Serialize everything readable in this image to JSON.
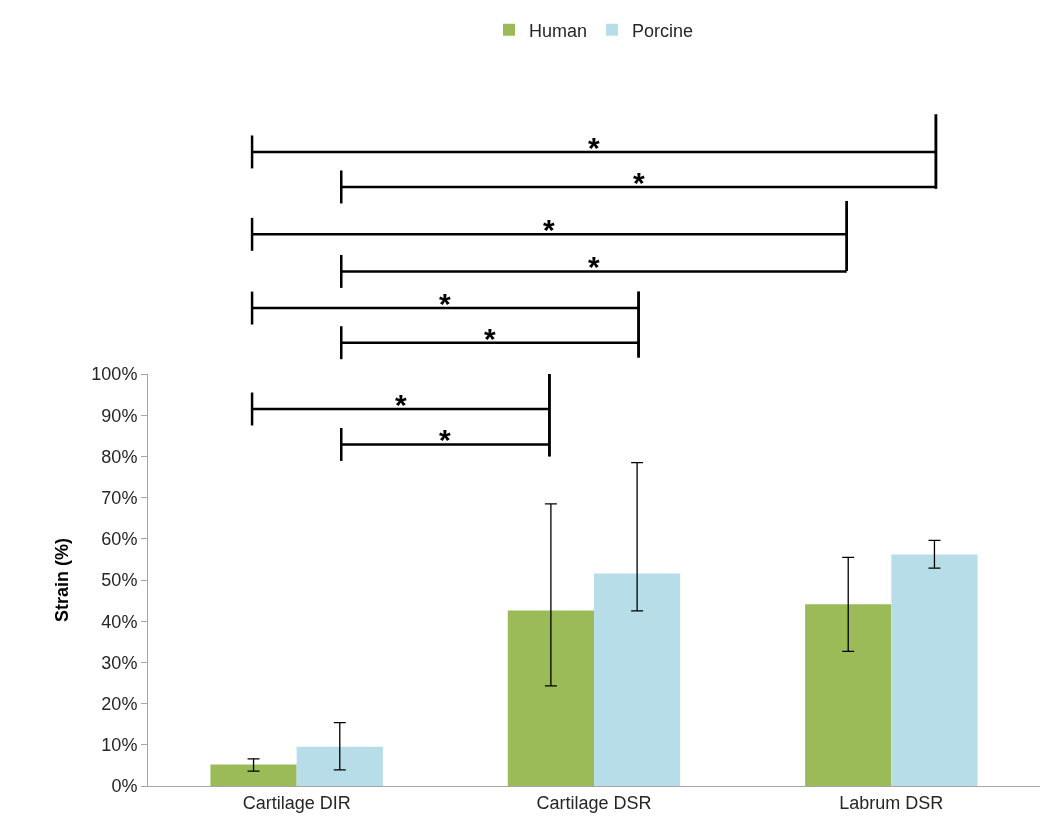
{
  "chart_data": {
    "type": "bar",
    "ylabel": "Strain (%)",
    "categories": [
      "Cartilage DIR",
      "Cartilage DSR",
      "Labrum DSR"
    ],
    "series": [
      {
        "name": "Human",
        "color": "#9bbb59",
        "values": [
          5.2,
          42.6,
          44.1
        ],
        "errors": [
          [
            3.6,
            6.6
          ],
          [
            24.3,
            68.5
          ],
          [
            32.7,
            55.5
          ]
        ]
      },
      {
        "name": "Porcine",
        "color": "#b7dde8",
        "values": [
          9.5,
          51.6,
          56.2
        ],
        "errors": [
          [
            3.9,
            15.4
          ],
          [
            42.5,
            78.5
          ],
          [
            52.9,
            59.6
          ]
        ]
      }
    ],
    "ylim": [
      0,
      100
    ],
    "yticks": [
      {
        "value": 0,
        "label": "0%"
      },
      {
        "value": 10,
        "label": "10%"
      },
      {
        "value": 20,
        "label": "20%"
      },
      {
        "value": 30,
        "label": "30%"
      },
      {
        "value": 40,
        "label": "40%"
      },
      {
        "value": 50,
        "label": "50%"
      },
      {
        "value": 60,
        "label": "60%"
      },
      {
        "value": 70,
        "label": "70%"
      },
      {
        "value": 80,
        "label": "80%"
      },
      {
        "value": 90,
        "label": "90%"
      },
      {
        "value": 100,
        "label": "100%"
      }
    ],
    "grid": false,
    "legend": "top",
    "annotations": [
      "*",
      "*",
      "*",
      "*",
      "*",
      "*",
      "*",
      "*"
    ]
  }
}
